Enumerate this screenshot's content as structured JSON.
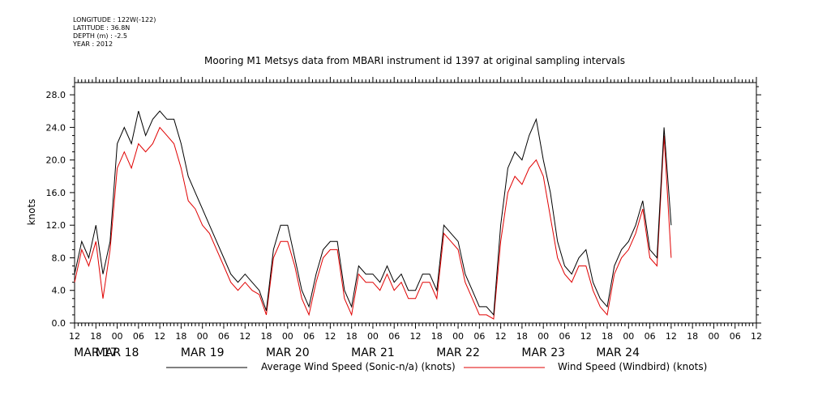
{
  "meta": {
    "longitude": "LONGITUDE : 122W(-122)",
    "latitude": "LATITUDE : 36.8N",
    "depth": "DEPTH (m) : -2.5",
    "year": "YEAR : 2012"
  },
  "colors": {
    "series1": "#000000",
    "series2": "#e00000"
  },
  "chart_data": {
    "type": "line",
    "title": "Mooring M1 Metsys data from MBARI instrument id 1397 at original sampling intervals",
    "ylabel": "knots",
    "xlabel": "",
    "ylim": [
      0,
      29.5
    ],
    "xlim_hours": [
      0,
      192
    ],
    "y_ticks": [
      "0.0",
      "4.0",
      "8.0",
      "12.0",
      "16.0",
      "20.0",
      "24.0",
      "28.0"
    ],
    "x_hour_labels": [
      "12",
      "18",
      "00",
      "06",
      "12",
      "18",
      "00",
      "06",
      "12",
      "18",
      "00",
      "06",
      "12",
      "18",
      "00",
      "06",
      "12",
      "18",
      "00",
      "06",
      "12",
      "18",
      "00",
      "06",
      "12",
      "18",
      "00",
      "06",
      "12",
      "18",
      "00",
      "06",
      "12"
    ],
    "x_day_labels": [
      "MAR 17",
      "MAR 18",
      "MAR 19",
      "MAR 20",
      "MAR 21",
      "MAR 22",
      "MAR 23",
      "MAR 24"
    ],
    "grid": false,
    "legend_position": "bottom",
    "series": [
      {
        "name": "Average Wind Speed (Sonic-n/a) (knots)",
        "x": [
          "Mar 17 12:00",
          "Mar 17 14:00",
          "Mar 17 16:00",
          "Mar 17 18:00",
          "Mar 17 20:00",
          "Mar 17 22:00",
          "Mar 18 00:00",
          "Mar 18 02:00",
          "Mar 18 04:00",
          "Mar 18 06:00",
          "Mar 18 08:00",
          "Mar 18 10:00",
          "Mar 18 12:00",
          "Mar 18 14:00",
          "Mar 18 16:00",
          "Mar 18 18:00",
          "Mar 18 20:00",
          "Mar 18 22:00",
          "Mar 19 00:00",
          "Mar 19 02:00",
          "Mar 19 04:00",
          "Mar 19 06:00",
          "Mar 19 08:00",
          "Mar 19 10:00",
          "Mar 19 12:00",
          "Mar 19 14:00",
          "Mar 19 16:00",
          "Mar 19 18:00",
          "Mar 19 20:00",
          "Mar 19 22:00",
          "Mar 20 00:00",
          "Mar 20 02:00",
          "Mar 20 04:00",
          "Mar 20 06:00",
          "Mar 20 08:00",
          "Mar 20 10:00",
          "Mar 20 12:00",
          "Mar 20 14:00",
          "Mar 20 16:00",
          "Mar 20 18:00",
          "Mar 20 20:00",
          "Mar 20 22:00",
          "Mar 21 00:00",
          "Mar 21 02:00",
          "Mar 21 04:00",
          "Mar 21 06:00",
          "Mar 21 08:00",
          "Mar 21 10:00",
          "Mar 21 12:00",
          "Mar 21 14:00",
          "Mar 21 16:00",
          "Mar 21 18:00",
          "Mar 21 20:00",
          "Mar 21 22:00",
          "Mar 22 00:00",
          "Mar 22 02:00",
          "Mar 22 04:00",
          "Mar 22 06:00",
          "Mar 22 08:00",
          "Mar 22 10:00",
          "Mar 22 12:00",
          "Mar 22 14:00",
          "Mar 22 16:00",
          "Mar 22 18:00",
          "Mar 22 20:00",
          "Mar 22 22:00",
          "Mar 23 00:00",
          "Mar 23 02:00",
          "Mar 23 04:00",
          "Mar 23 06:00",
          "Mar 23 08:00",
          "Mar 23 10:00",
          "Mar 23 12:00",
          "Mar 23 14:00",
          "Mar 23 16:00",
          "Mar 23 18:00",
          "Mar 23 20:00",
          "Mar 23 22:00",
          "Mar 24 00:00",
          "Mar 24 02:00",
          "Mar 24 04:00",
          "Mar 24 06:00",
          "Mar 24 08:00",
          "Mar 24 10:00",
          "Mar 24 12:00"
        ],
        "values": [
          6,
          10,
          8,
          12,
          6,
          10,
          22,
          24,
          22,
          26,
          23,
          25,
          26,
          25,
          25,
          22,
          18,
          16,
          14,
          12,
          10,
          8,
          6,
          5,
          6,
          5,
          4,
          1.5,
          9,
          12,
          12,
          8,
          4,
          2,
          6,
          9,
          10,
          10,
          4,
          2,
          7,
          6,
          6,
          5,
          7,
          5,
          6,
          4,
          4,
          6,
          6,
          4,
          12,
          11,
          10,
          6,
          4,
          2,
          2,
          1,
          12,
          19,
          21,
          20,
          23,
          25,
          20,
          16,
          10,
          7,
          6,
          8,
          9,
          5,
          3,
          2,
          7,
          9,
          10,
          12,
          15,
          9,
          8,
          24,
          12
        ]
      },
      {
        "name": "Wind Speed (Windbird) (knots)",
        "x": [
          "Mar 17 12:00",
          "Mar 17 14:00",
          "Mar 17 16:00",
          "Mar 17 18:00",
          "Mar 17 20:00",
          "Mar 17 22:00",
          "Mar 18 00:00",
          "Mar 18 02:00",
          "Mar 18 04:00",
          "Mar 18 06:00",
          "Mar 18 08:00",
          "Mar 18 10:00",
          "Mar 18 12:00",
          "Mar 18 14:00",
          "Mar 18 16:00",
          "Mar 18 18:00",
          "Mar 18 20:00",
          "Mar 18 22:00",
          "Mar 19 00:00",
          "Mar 19 02:00",
          "Mar 19 04:00",
          "Mar 19 06:00",
          "Mar 19 08:00",
          "Mar 19 10:00",
          "Mar 19 12:00",
          "Mar 19 14:00",
          "Mar 19 16:00",
          "Mar 19 18:00",
          "Mar 19 20:00",
          "Mar 19 22:00",
          "Mar 20 00:00",
          "Mar 20 02:00",
          "Mar 20 04:00",
          "Mar 20 06:00",
          "Mar 20 08:00",
          "Mar 20 10:00",
          "Mar 20 12:00",
          "Mar 20 14:00",
          "Mar 20 16:00",
          "Mar 20 18:00",
          "Mar 20 20:00",
          "Mar 20 22:00",
          "Mar 21 00:00",
          "Mar 21 02:00",
          "Mar 21 04:00",
          "Mar 21 06:00",
          "Mar 21 08:00",
          "Mar 21 10:00",
          "Mar 21 12:00",
          "Mar 21 14:00",
          "Mar 21 16:00",
          "Mar 21 18:00",
          "Mar 21 20:00",
          "Mar 21 22:00",
          "Mar 22 00:00",
          "Mar 22 02:00",
          "Mar 22 04:00",
          "Mar 22 06:00",
          "Mar 22 08:00",
          "Mar 22 10:00",
          "Mar 22 12:00",
          "Mar 22 14:00",
          "Mar 22 16:00",
          "Mar 22 18:00",
          "Mar 22 20:00",
          "Mar 22 22:00",
          "Mar 23 00:00",
          "Mar 23 02:00",
          "Mar 23 04:00",
          "Mar 23 06:00",
          "Mar 23 08:00",
          "Mar 23 10:00",
          "Mar 23 12:00",
          "Mar 23 14:00",
          "Mar 23 16:00",
          "Mar 23 18:00",
          "Mar 23 20:00",
          "Mar 23 22:00",
          "Mar 24 00:00",
          "Mar 24 02:00",
          "Mar 24 04:00",
          "Mar 24 06:00",
          "Mar 24 08:00",
          "Mar 24 10:00",
          "Mar 24 12:00"
        ],
        "values": [
          5,
          9,
          7,
          10,
          3,
          9,
          19,
          21,
          19,
          22,
          21,
          22,
          24,
          23,
          22,
          19,
          15,
          14,
          12,
          11,
          9,
          7,
          5,
          4,
          5,
          4,
          3.5,
          1,
          8,
          10,
          10,
          7,
          3,
          1,
          5,
          8,
          9,
          9,
          3,
          1,
          6,
          5,
          5,
          4,
          6,
          4,
          5,
          3,
          3,
          5,
          5,
          3,
          11,
          10,
          9,
          5,
          3,
          1,
          1,
          0.5,
          10,
          16,
          18,
          17,
          19,
          20,
          18,
          13,
          8,
          6,
          5,
          7,
          7,
          4,
          2,
          1,
          6,
          8,
          9,
          11,
          14,
          8,
          7,
          23,
          8
        ]
      }
    ]
  }
}
